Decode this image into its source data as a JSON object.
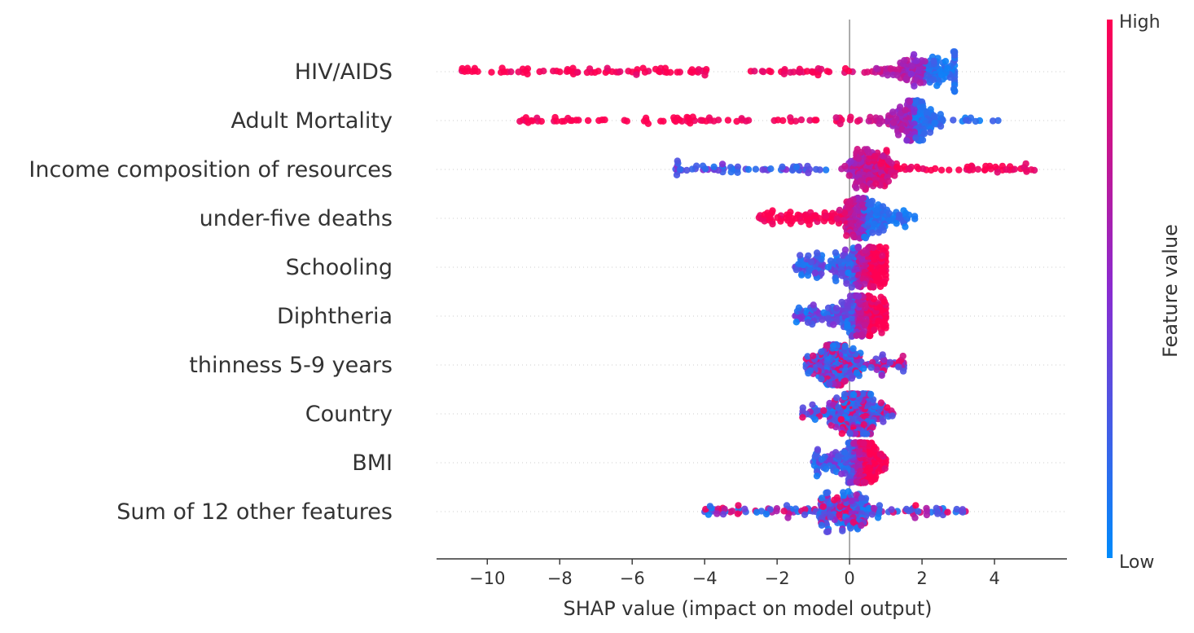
{
  "chart_data": {
    "type": "scatter",
    "subtype": "shap-beeswarm",
    "title": "",
    "xlabel": "SHAP value (impact on model output)",
    "xlim": [
      -11.4,
      6.0
    ],
    "xticks": [
      -10,
      -8,
      -6,
      -4,
      -2,
      0,
      2,
      4
    ],
    "xtick_labels": [
      "−10",
      "−8",
      "−6",
      "−4",
      "−2",
      "0",
      "2",
      "4"
    ],
    "grid": false,
    "colorbar": {
      "label": "Feature value",
      "high_label": "High",
      "low_label": "Low",
      "high_color": "#ff0052",
      "mid_color": "#8a2bd0",
      "low_color": "#008bfb"
    },
    "features": [
      {
        "name": "HIV/AIDS",
        "min": -10.7,
        "max": 2.9,
        "center": 2.1,
        "polarity": -1,
        "spread": 2.0
      },
      {
        "name": "Adult Mortality",
        "min": -9.1,
        "max": 4.1,
        "center": 1.8,
        "polarity": -1,
        "spread": 1.2
      },
      {
        "name": "Income composition of resources",
        "min": -4.8,
        "max": 5.1,
        "center": 0.6,
        "polarity": 1,
        "spread": 1.2
      },
      {
        "name": "under-five deaths ",
        "min": -2.5,
        "max": 1.8,
        "center": 0.4,
        "polarity": -1,
        "spread": 1.5
      },
      {
        "name": "Schooling",
        "min": -1.5,
        "max": 1.0,
        "center": 0.4,
        "polarity": 1,
        "spread": 1.3
      },
      {
        "name": "Diphtheria",
        "min": -1.5,
        "max": 1.0,
        "center": 0.4,
        "polarity": 1,
        "spread": 1.3
      },
      {
        "name": "thinness 5-9 years",
        "min": -1.2,
        "max": 1.5,
        "center": -0.4,
        "polarity": 0,
        "spread": 1.1
      },
      {
        "name": "Country",
        "min": -1.3,
        "max": 1.2,
        "center": 0.2,
        "polarity": 0,
        "spread": 1.1
      },
      {
        "name": "BMI",
        "min": -1.0,
        "max": 1.0,
        "center": 0.3,
        "polarity": 1,
        "spread": 1.0
      },
      {
        "name": "Sum of 12 other features",
        "min": -4.0,
        "max": 3.2,
        "center": 0.0,
        "polarity": 0,
        "spread": 1.6
      }
    ]
  }
}
